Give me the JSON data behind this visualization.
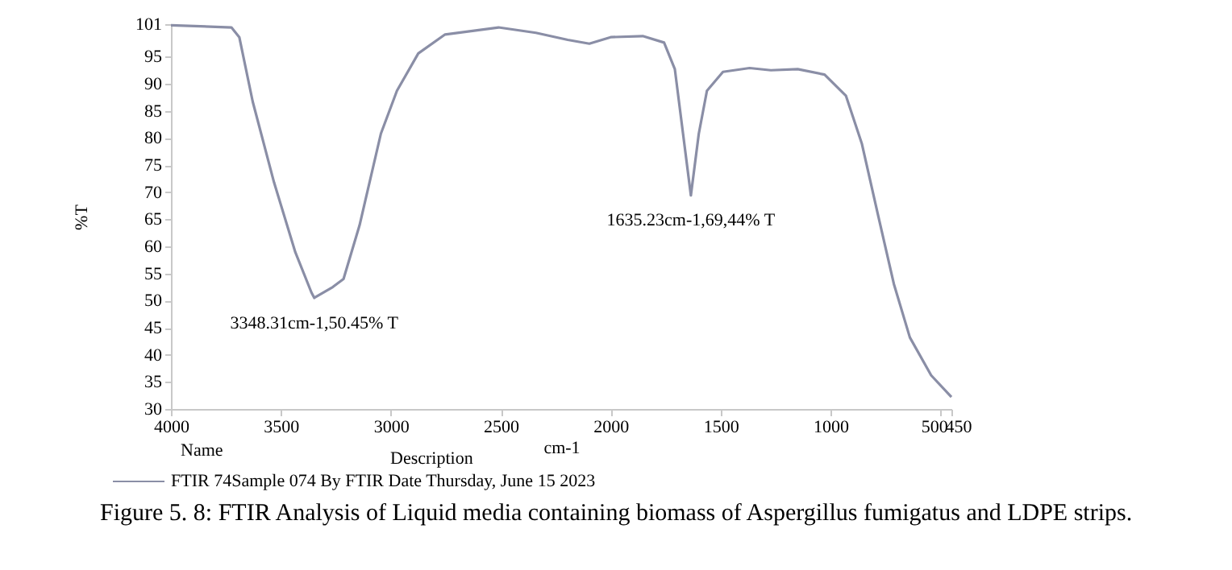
{
  "chart_data": {
    "type": "line",
    "xlabel": "cm-1",
    "ylabel": "%T",
    "x": [
      4000,
      3725,
      3689,
      3628,
      3531,
      3434,
      3361,
      3348,
      3264,
      3215,
      3142,
      3045,
      2972,
      2875,
      2753,
      2510,
      2340,
      2195,
      2097,
      2000,
      1854,
      1757,
      1708,
      1635,
      1599,
      1562,
      1489,
      1368,
      1271,
      1149,
      1027,
      930,
      857,
      785,
      712,
      639,
      542,
      450
    ],
    "series": [
      {
        "name": "FTIR 74Sample 074 By FTIR Date Thursday, June 15 2023",
        "color": "#8a8ea6",
        "values": [
          100.8,
          100.4,
          98.6,
          86.7,
          71.8,
          58.9,
          51.5,
          50.5,
          52.5,
          54.0,
          63.9,
          80.8,
          88.7,
          95.6,
          99.1,
          100.4,
          99.4,
          98.1,
          97.4,
          98.6,
          98.8,
          97.6,
          92.7,
          69.4,
          80.8,
          88.7,
          92.2,
          92.9,
          92.5,
          92.7,
          91.7,
          87.8,
          78.9,
          66.0,
          53.1,
          43.2,
          36.2,
          32.2
        ]
      }
    ],
    "xlim": [
      4000,
      450
    ],
    "xticks": [
      4000,
      3500,
      3000,
      2500,
      2000,
      1500,
      1000,
      500,
      450
    ],
    "ylim": [
      30,
      101
    ],
    "yticks": [
      30,
      35,
      40,
      45,
      50,
      55,
      60,
      65,
      70,
      75,
      80,
      85,
      90,
      95,
      101
    ],
    "legend": "bottom left",
    "annotations": [
      {
        "text": "3348.31cm-1,50.45% T",
        "x": 3348.31,
        "y": 50.45
      },
      {
        "text": "1635.23cm-1,69,44% T",
        "x": 1635.23,
        "y": 69.44
      },
      "Name",
      "Description",
      "Figure 5. 8: FTIR Analysis of Liquid media containing biomass of Aspergillus fumigatus and LDPE strips."
    ]
  }
}
